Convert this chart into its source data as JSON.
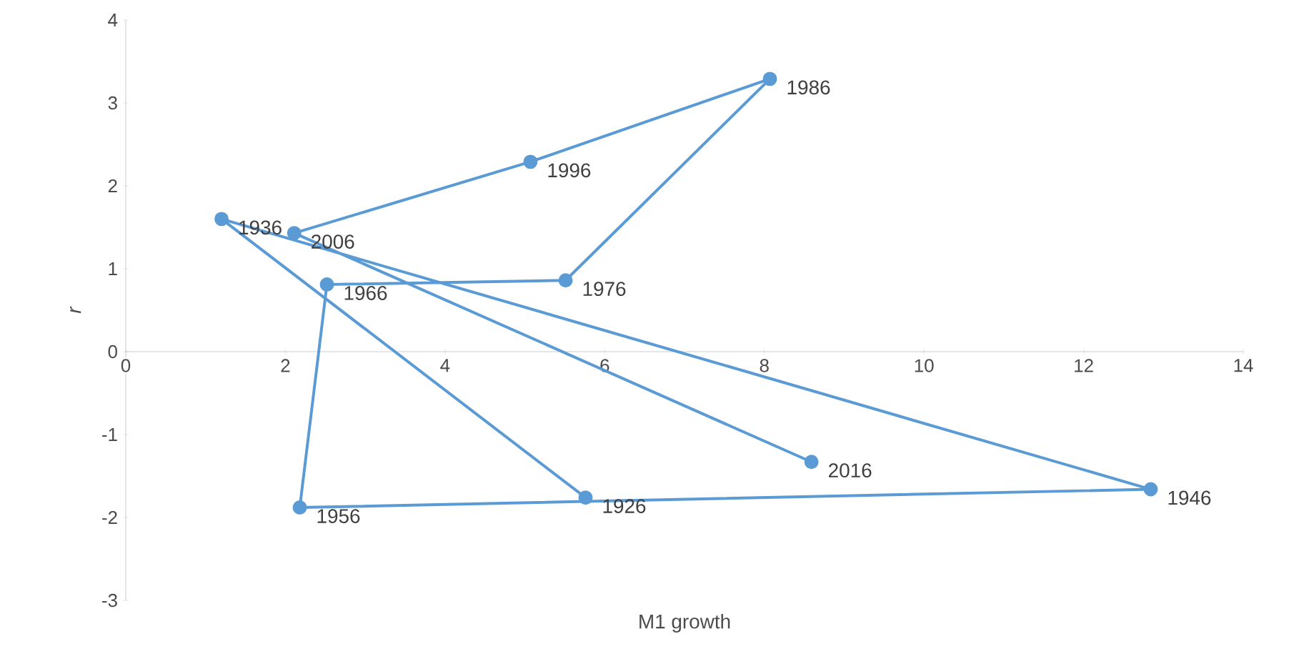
{
  "chart_data": {
    "type": "line",
    "xlabel": "M1 growth",
    "ylabel": "r",
    "xlim": [
      0,
      14
    ],
    "xticks": [
      0,
      2,
      4,
      6,
      8,
      10,
      12,
      14
    ],
    "ylim": [
      -3,
      4
    ],
    "yticks": [
      -3,
      -2,
      -1,
      0,
      1,
      2,
      3,
      4
    ],
    "marker": "circle",
    "line_style": "solid",
    "series": [
      {
        "color": "#5b9bd5",
        "x": [
          5.76,
          1.2,
          12.84,
          2.18,
          2.52,
          5.51,
          8.07,
          5.07,
          2.11,
          8.59
        ],
        "values": [
          -1.76,
          1.6,
          -1.66,
          -1.88,
          0.81,
          0.86,
          3.29,
          2.29,
          1.43,
          -1.33
        ]
      }
    ],
    "annotations": [
      {
        "text": "1926",
        "x": 5.76,
        "y": -1.76
      },
      {
        "text": "1936",
        "x": 1.2,
        "y": 1.6
      },
      {
        "text": "1946",
        "x": 12.84,
        "y": -1.66
      },
      {
        "text": "1956",
        "x": 2.18,
        "y": -1.88
      },
      {
        "text": "1966",
        "x": 2.52,
        "y": 0.81
      },
      {
        "text": "1976",
        "x": 5.51,
        "y": 0.86
      },
      {
        "text": "1986",
        "x": 8.07,
        "y": 3.29
      },
      {
        "text": "1996",
        "x": 5.07,
        "y": 2.29
      },
      {
        "text": "2006",
        "x": 2.11,
        "y": 1.43
      },
      {
        "text": "2016",
        "x": 8.59,
        "y": -1.33
      }
    ]
  }
}
